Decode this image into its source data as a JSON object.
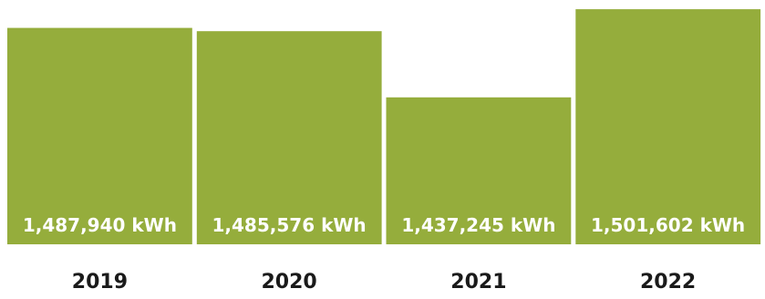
{
  "chart_data": {
    "type": "bar",
    "categories": [
      "2019",
      "2020",
      "2021",
      "2022"
    ],
    "values": [
      1487940,
      1485576,
      1437245,
      1501602
    ],
    "data_labels": [
      "1,487,940 kWh",
      "1,485,576 kWh",
      "1,437,245 kWh",
      "1,501,602 kWh"
    ],
    "unit": "kWh",
    "ylim": [
      1330000,
      1503000
    ],
    "grid": false,
    "legend": "none",
    "colors": {
      "bar": "#95ad3c",
      "bar_label": "#ffffff",
      "tick_label": "#1a1a1a"
    }
  }
}
